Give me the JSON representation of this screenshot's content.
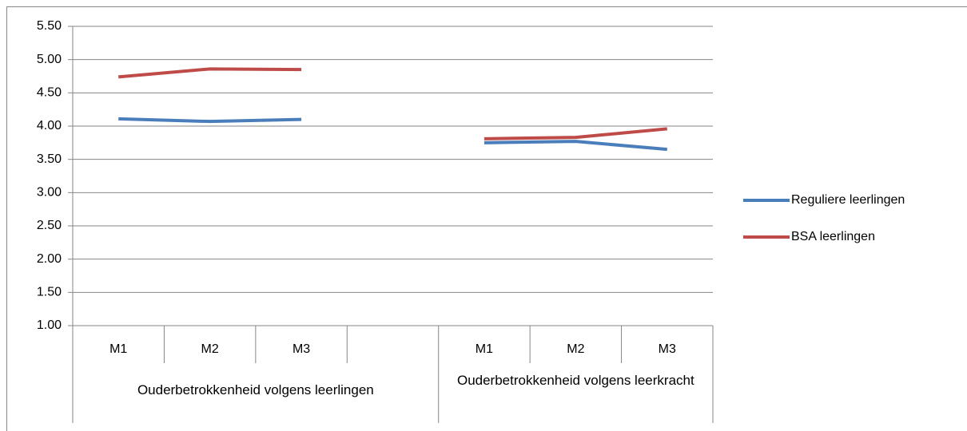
{
  "chart_data": {
    "type": "line",
    "groups": [
      {
        "name": "Ouderbetrokkenheid volgens leerlingen",
        "categories": [
          "M1",
          "M2",
          "M3",
          null
        ]
      },
      {
        "name": "Ouderbetrokkenheid volgens leerkracht",
        "categories": [
          "M1",
          "M2",
          "M3"
        ]
      }
    ],
    "series": [
      {
        "name": "Reguliere leerlingen",
        "color": "#4a7ebb",
        "values": [
          4.11,
          4.07,
          4.1,
          null,
          3.75,
          3.77,
          3.65
        ]
      },
      {
        "name": "BSA leerlingen",
        "color": "#be4b48",
        "values": [
          4.74,
          4.86,
          4.85,
          null,
          3.81,
          3.83,
          3.96
        ]
      }
    ],
    "ylim": [
      1,
      5.5
    ],
    "yticks": [
      {
        "value": 1,
        "label": "1.00"
      },
      {
        "value": 1.5,
        "label": "1.50"
      },
      {
        "value": 2,
        "label": "2.00"
      },
      {
        "value": 2.5,
        "label": "2.50"
      },
      {
        "value": 3,
        "label": "3.00"
      },
      {
        "value": 3.5,
        "label": "3.50"
      },
      {
        "value": 4,
        "label": "4.00"
      },
      {
        "value": 4.5,
        "label": "4.50"
      },
      {
        "value": 5,
        "label": "5.00"
      },
      {
        "value": 5.5,
        "label": "5.50"
      }
    ],
    "grid": true,
    "legend": "right"
  }
}
